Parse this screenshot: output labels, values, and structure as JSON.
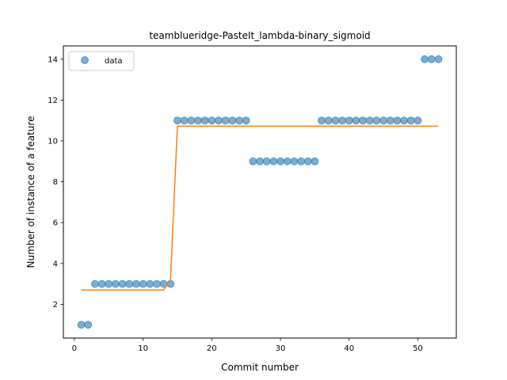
{
  "chart_data": {
    "type": "scatter",
    "title": "teamblueridge-PasteIt_lambda-binary_sigmoid",
    "xlabel": "Commit number",
    "ylabel": "Number of instance of a feature",
    "xlim": [
      -1.6,
      55.6
    ],
    "ylim": [
      0.35,
      14.65
    ],
    "xticks": [
      0,
      10,
      20,
      30,
      40,
      50
    ],
    "yticks": [
      2,
      4,
      6,
      8,
      10,
      12,
      14
    ],
    "grid": false,
    "legend_position": "top-left",
    "series": [
      {
        "name": "data",
        "kind": "scatter",
        "color": "#1f77b4",
        "alpha": 0.6,
        "x": [
          1,
          2,
          3,
          4,
          5,
          6,
          7,
          8,
          9,
          10,
          11,
          12,
          13,
          14,
          15,
          16,
          17,
          18,
          19,
          20,
          21,
          22,
          23,
          24,
          25,
          26,
          27,
          28,
          29,
          30,
          31,
          32,
          33,
          34,
          35,
          36,
          37,
          38,
          39,
          40,
          41,
          42,
          43,
          44,
          45,
          46,
          47,
          48,
          49,
          50,
          51,
          52,
          53
        ],
        "y": [
          1,
          1,
          3,
          3,
          3,
          3,
          3,
          3,
          3,
          3,
          3,
          3,
          3,
          3,
          11,
          11,
          11,
          11,
          11,
          11,
          11,
          11,
          11,
          11,
          11,
          9,
          9,
          9,
          9,
          9,
          9,
          9,
          9,
          9,
          9,
          11,
          11,
          11,
          11,
          11,
          11,
          11,
          11,
          11,
          11,
          11,
          11,
          11,
          11,
          11,
          14,
          14,
          14
        ]
      },
      {
        "kind": "line",
        "color": "#ff7f0e",
        "x": [
          1,
          13,
          14,
          15,
          53
        ],
        "y": [
          2.7,
          2.7,
          3.2,
          10.72,
          10.72
        ]
      }
    ]
  }
}
